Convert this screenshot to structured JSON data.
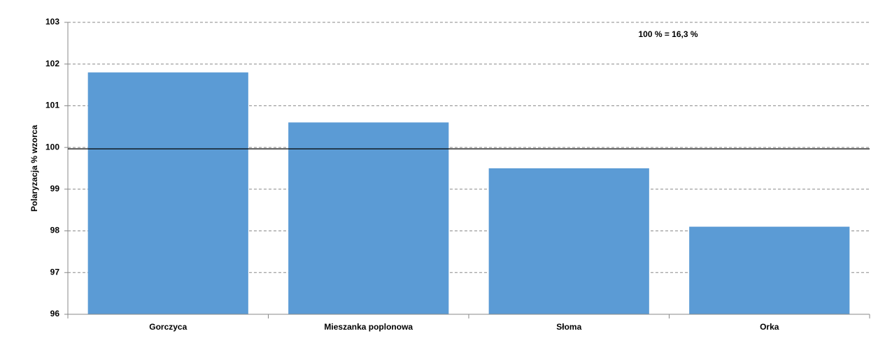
{
  "chart_data": {
    "type": "bar",
    "y_label": "Polaryzacja % wzorca",
    "annotation": "100 % = 16,3 %",
    "categories": [
      "Gorczyca",
      "Mieszanka poplonowa",
      "Słoma",
      "Orka"
    ],
    "values": [
      101.8,
      100.6,
      99.5,
      98.1
    ],
    "color": "#5b9bd5",
    "ylim": [
      96,
      103
    ],
    "yticks": [
      96,
      97,
      98,
      99,
      100,
      101,
      102,
      103
    ],
    "grid": true,
    "reference_line": 100
  }
}
